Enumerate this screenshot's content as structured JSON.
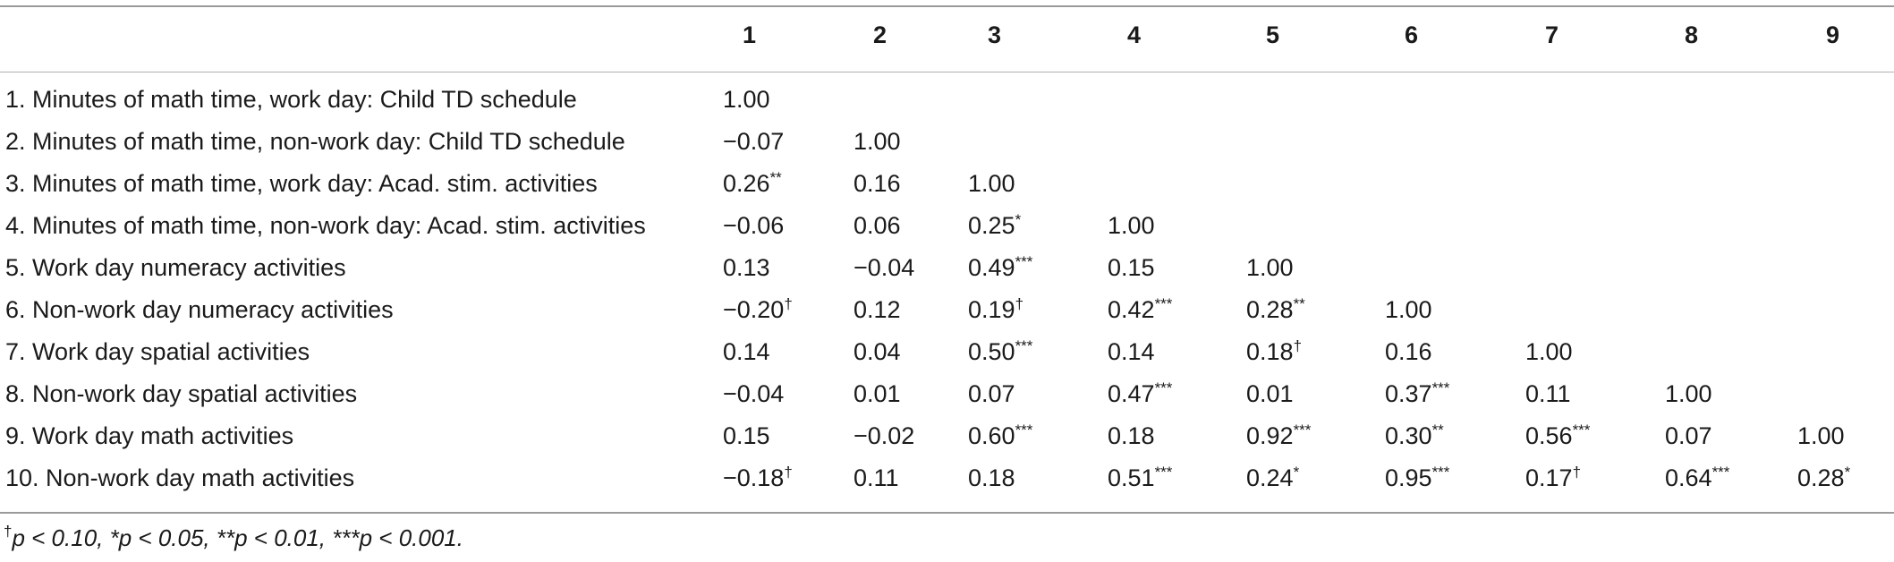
{
  "table": {
    "columns": [
      "1",
      "2",
      "3",
      "4",
      "5",
      "6",
      "7",
      "8",
      "9"
    ],
    "rows": [
      {
        "label": "1. Minutes of math time, work day: Child TD schedule",
        "cells": [
          [
            "1.00",
            ""
          ]
        ]
      },
      {
        "label": "2. Minutes of math time, non-work day: Child TD schedule",
        "cells": [
          [
            "−0.07",
            ""
          ],
          [
            "1.00",
            ""
          ]
        ]
      },
      {
        "label": "3. Minutes of math time, work day: Acad. stim. activities",
        "cells": [
          [
            "0.26",
            "**"
          ],
          [
            "0.16",
            ""
          ],
          [
            "1.00",
            ""
          ]
        ]
      },
      {
        "label": "4. Minutes of math time, non-work day: Acad. stim. activities",
        "cells": [
          [
            "−0.06",
            ""
          ],
          [
            "0.06",
            ""
          ],
          [
            "0.25",
            "*"
          ],
          [
            "1.00",
            ""
          ]
        ]
      },
      {
        "label": "5. Work day numeracy activities",
        "cells": [
          [
            "0.13",
            ""
          ],
          [
            "−0.04",
            ""
          ],
          [
            "0.49",
            "***"
          ],
          [
            "0.15",
            ""
          ],
          [
            "1.00",
            ""
          ]
        ]
      },
      {
        "label": "6. Non-work day numeracy activities",
        "cells": [
          [
            "−0.20",
            "†"
          ],
          [
            "0.12",
            ""
          ],
          [
            "0.19",
            "†"
          ],
          [
            "0.42",
            "***"
          ],
          [
            "0.28",
            "**"
          ],
          [
            "1.00",
            ""
          ]
        ]
      },
      {
        "label": "7. Work day spatial activities",
        "cells": [
          [
            "0.14",
            ""
          ],
          [
            "0.04",
            ""
          ],
          [
            "0.50",
            "***"
          ],
          [
            "0.14",
            ""
          ],
          [
            "0.18",
            "†"
          ],
          [
            "0.16",
            ""
          ],
          [
            "1.00",
            ""
          ]
        ]
      },
      {
        "label": "8. Non-work day spatial activities",
        "cells": [
          [
            "−0.04",
            ""
          ],
          [
            "0.01",
            ""
          ],
          [
            "0.07",
            ""
          ],
          [
            "0.47",
            "***"
          ],
          [
            "0.01",
            ""
          ],
          [
            "0.37",
            "***"
          ],
          [
            "0.11",
            ""
          ],
          [
            "1.00",
            ""
          ]
        ]
      },
      {
        "label": "9. Work day math activities",
        "cells": [
          [
            "0.15",
            ""
          ],
          [
            "−0.02",
            ""
          ],
          [
            "0.60",
            "***"
          ],
          [
            "0.18",
            ""
          ],
          [
            "0.92",
            "***"
          ],
          [
            "0.30",
            "**"
          ],
          [
            "0.56",
            "***"
          ],
          [
            "0.07",
            ""
          ],
          [
            "1.00",
            ""
          ]
        ]
      },
      {
        "label": "10. Non-work day math activities",
        "cells": [
          [
            "−0.18",
            "†"
          ],
          [
            "0.11",
            ""
          ],
          [
            "0.18",
            ""
          ],
          [
            "0.51",
            "***"
          ],
          [
            "0.24",
            "*"
          ],
          [
            "0.95",
            "***"
          ],
          [
            "0.17",
            "†"
          ],
          [
            "0.64",
            "***"
          ],
          [
            "0.28",
            "*"
          ]
        ]
      }
    ]
  },
  "footnote": {
    "dagger": "†",
    "text": "p < 0.10, *p < 0.05, **p < 0.01, ***p < 0.001."
  }
}
